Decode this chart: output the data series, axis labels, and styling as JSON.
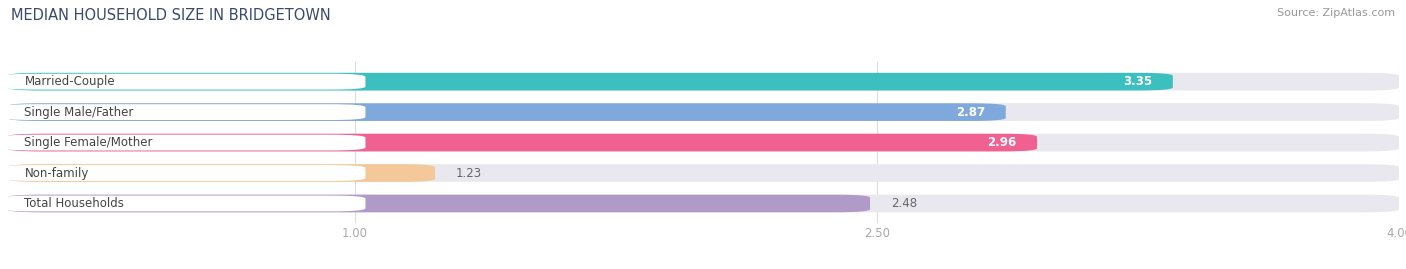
{
  "title": "MEDIAN HOUSEHOLD SIZE IN BRIDGETOWN",
  "source": "Source: ZipAtlas.com",
  "categories": [
    "Married-Couple",
    "Single Male/Father",
    "Single Female/Mother",
    "Non-family",
    "Total Households"
  ],
  "values": [
    3.35,
    2.87,
    2.96,
    1.23,
    2.48
  ],
  "bar_colors": [
    "#3bbfbf",
    "#7fa8dc",
    "#f06090",
    "#f5c89a",
    "#b09ac8"
  ],
  "track_color": "#e8e8ee",
  "label_bg_color": "#ffffff",
  "xmin": 0.0,
  "xmax": 4.0,
  "xticks": [
    1.0,
    2.5,
    4.0
  ],
  "bar_height": 0.58,
  "label_fontsize": 8.5,
  "value_fontsize": 8.5,
  "title_fontsize": 10.5,
  "source_fontsize": 8,
  "background_color": "#ffffff",
  "title_color": "#3a4a6b",
  "label_text_color": "#444444",
  "value_inside_color": "#ffffff",
  "value_outside_color": "#666666",
  "tick_color": "#aaaaaa",
  "grid_color": "#dddddd",
  "value_inside_threshold": 2.5
}
